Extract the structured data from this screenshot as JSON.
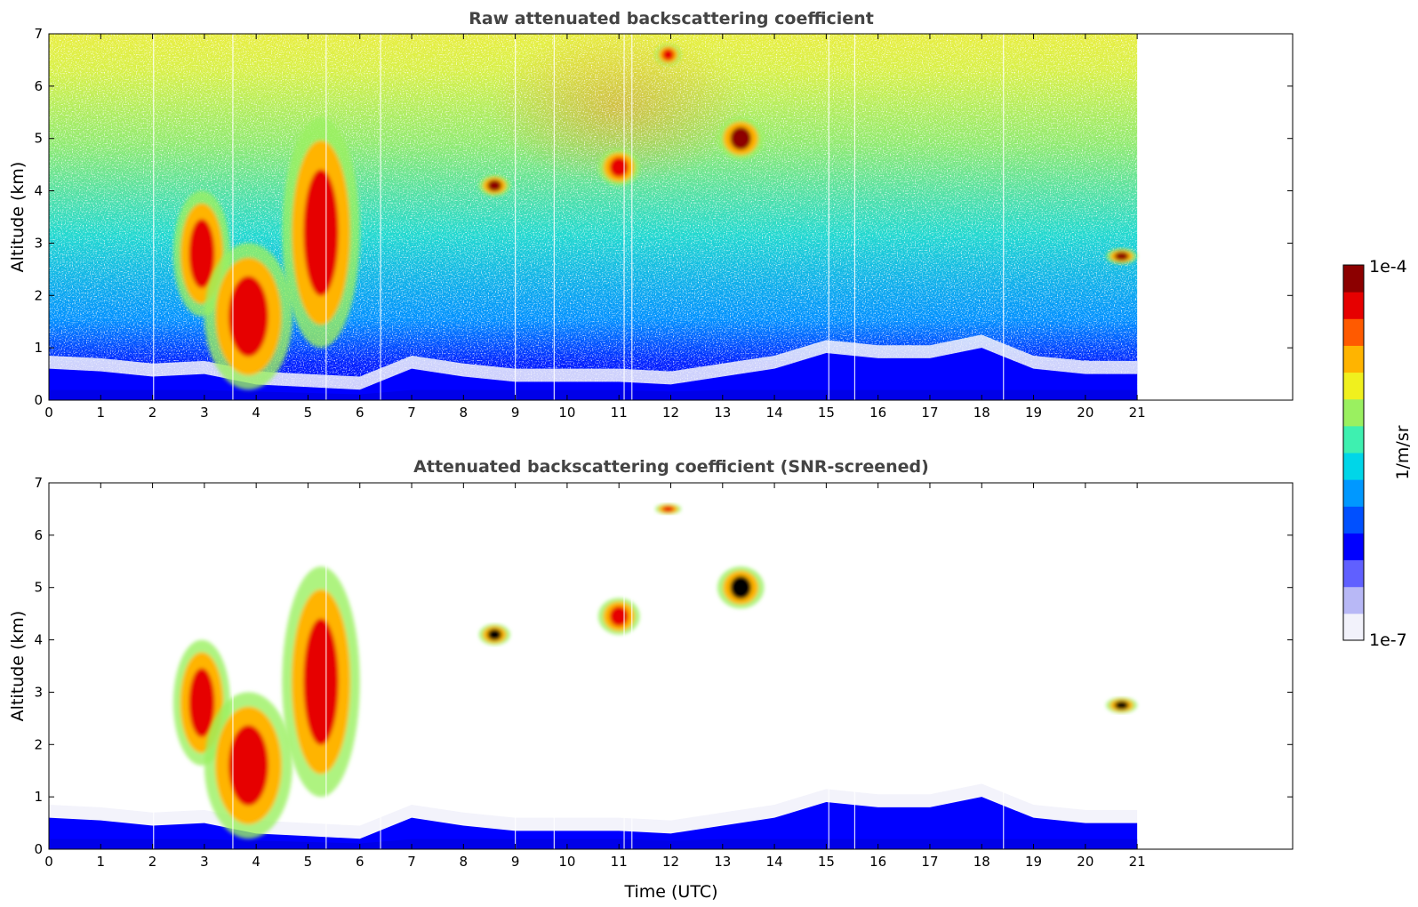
{
  "chart_data": [
    {
      "type": "heatmap",
      "title": "Raw attenuated backscattering coefficient",
      "xlabel": "",
      "ylabel": "Altitude (km)",
      "xlim": [
        0,
        24
      ],
      "ylim": [
        0,
        7
      ],
      "data_extent_x": [
        0,
        21
      ],
      "xticks": [
        0,
        1,
        2,
        3,
        4,
        5,
        6,
        7,
        8,
        9,
        10,
        11,
        12,
        13,
        14,
        15,
        16,
        17,
        18,
        19,
        20,
        21
      ],
      "yticks": [
        0,
        1,
        2,
        3,
        4,
        5,
        6,
        7
      ],
      "background_noise": "increasing with altitude (blue near 1 km to yellow-green near 7 km)",
      "boundary_layer_top_km": [
        [
          0,
          0.6
        ],
        [
          1,
          0.55
        ],
        [
          2,
          0.45
        ],
        [
          3,
          0.5
        ],
        [
          4,
          0.3
        ],
        [
          5,
          0.25
        ],
        [
          6,
          0.2
        ],
        [
          7,
          0.6
        ],
        [
          8,
          0.45
        ],
        [
          9,
          0.35
        ],
        [
          10,
          0.35
        ],
        [
          11,
          0.35
        ],
        [
          12,
          0.3
        ],
        [
          13,
          0.45
        ],
        [
          14,
          0.6
        ],
        [
          15,
          0.9
        ],
        [
          16,
          0.8
        ],
        [
          17,
          0.8
        ],
        [
          18,
          1.0
        ],
        [
          19,
          0.6
        ],
        [
          20,
          0.5
        ],
        [
          21,
          0.5
        ]
      ],
      "cloud_features": [
        {
          "name": "descending cloud band",
          "x_utc": [
            2.4,
            3.5
          ],
          "alt_km": [
            1.6,
            4.0
          ],
          "level": "high"
        },
        {
          "name": "low cloud / aerosol",
          "x_utc": [
            3.0,
            4.7
          ],
          "alt_km": [
            0.2,
            3.0
          ],
          "level": "high"
        },
        {
          "name": "ascending cloud band",
          "x_utc": [
            4.5,
            6.0
          ],
          "alt_km": [
            1.0,
            5.4
          ],
          "level": "high"
        },
        {
          "name": "mid-level cloud",
          "x_utc": [
            8.3,
            8.9
          ],
          "alt_km": [
            3.9,
            4.3
          ],
          "level": "max"
        },
        {
          "name": "mid-level cloud",
          "x_utc": [
            10.6,
            11.4
          ],
          "alt_km": [
            4.1,
            4.8
          ],
          "level": "high"
        },
        {
          "name": "high cloud",
          "x_utc": [
            11.7,
            12.2
          ],
          "alt_km": [
            6.4,
            6.8
          ],
          "level": "high"
        },
        {
          "name": "cloud",
          "x_utc": [
            12.9,
            13.8
          ],
          "alt_km": [
            4.6,
            5.4
          ],
          "level": "max"
        },
        {
          "name": "cloud",
          "x_utc": [
            20.4,
            21.0
          ],
          "alt_km": [
            2.6,
            2.9
          ],
          "level": "max"
        }
      ]
    },
    {
      "type": "heatmap",
      "title": "Attenuated backscattering coefficient (SNR-screened)",
      "xlabel": "Time (UTC)",
      "ylabel": "Altitude (km)",
      "xlim": [
        0,
        24
      ],
      "ylim": [
        0,
        7
      ],
      "data_extent_x": [
        0,
        21
      ],
      "xticks": [
        0,
        1,
        2,
        3,
        4,
        5,
        6,
        7,
        8,
        9,
        10,
        11,
        12,
        13,
        14,
        15,
        16,
        17,
        18,
        19,
        20,
        21
      ],
      "yticks": [
        0,
        1,
        2,
        3,
        4,
        5,
        6,
        7
      ],
      "background_noise": "removed",
      "cloud_features": [
        {
          "name": "descending cloud band",
          "x_utc": [
            2.4,
            3.5
          ],
          "alt_km": [
            1.6,
            4.0
          ],
          "level": "high"
        },
        {
          "name": "low cloud / aerosol",
          "x_utc": [
            3.0,
            4.7
          ],
          "alt_km": [
            0.2,
            3.0
          ],
          "level": "high"
        },
        {
          "name": "ascending cloud band",
          "x_utc": [
            4.5,
            6.0
          ],
          "alt_km": [
            1.0,
            5.4
          ],
          "level": "high"
        },
        {
          "name": "mid-level cloud",
          "x_utc": [
            8.3,
            8.9
          ],
          "alt_km": [
            3.9,
            4.3
          ],
          "level": "max"
        },
        {
          "name": "mid-level cloud",
          "x_utc": [
            10.6,
            11.4
          ],
          "alt_km": [
            4.1,
            4.8
          ],
          "level": "high"
        },
        {
          "name": "high cloud",
          "x_utc": [
            11.7,
            12.2
          ],
          "alt_km": [
            6.4,
            6.6
          ],
          "level": "high"
        },
        {
          "name": "cloud",
          "x_utc": [
            12.9,
            13.8
          ],
          "alt_km": [
            4.6,
            5.4
          ],
          "level": "max"
        },
        {
          "name": "cloud",
          "x_utc": [
            20.4,
            21.0
          ],
          "alt_km": [
            2.6,
            2.9
          ],
          "level": "max"
        }
      ]
    }
  ],
  "colorbar": {
    "label": "1/m/sr",
    "top_label": "1e-4",
    "bottom_label": "1e-7",
    "scale": "log",
    "range": [
      1e-07,
      0.0001
    ]
  },
  "colors": {
    "colormap": [
      "#f2f2fb",
      "#b8b8f6",
      "#6060ff",
      "#0000ff",
      "#0050ff",
      "#0098ff",
      "#00d6e8",
      "#3ef0b0",
      "#9af060",
      "#f0f01e",
      "#ffb400",
      "#ff5a00",
      "#e60000",
      "#8c0000"
    ],
    "title_text": "#444444",
    "saturated_cloud": "#000000"
  }
}
